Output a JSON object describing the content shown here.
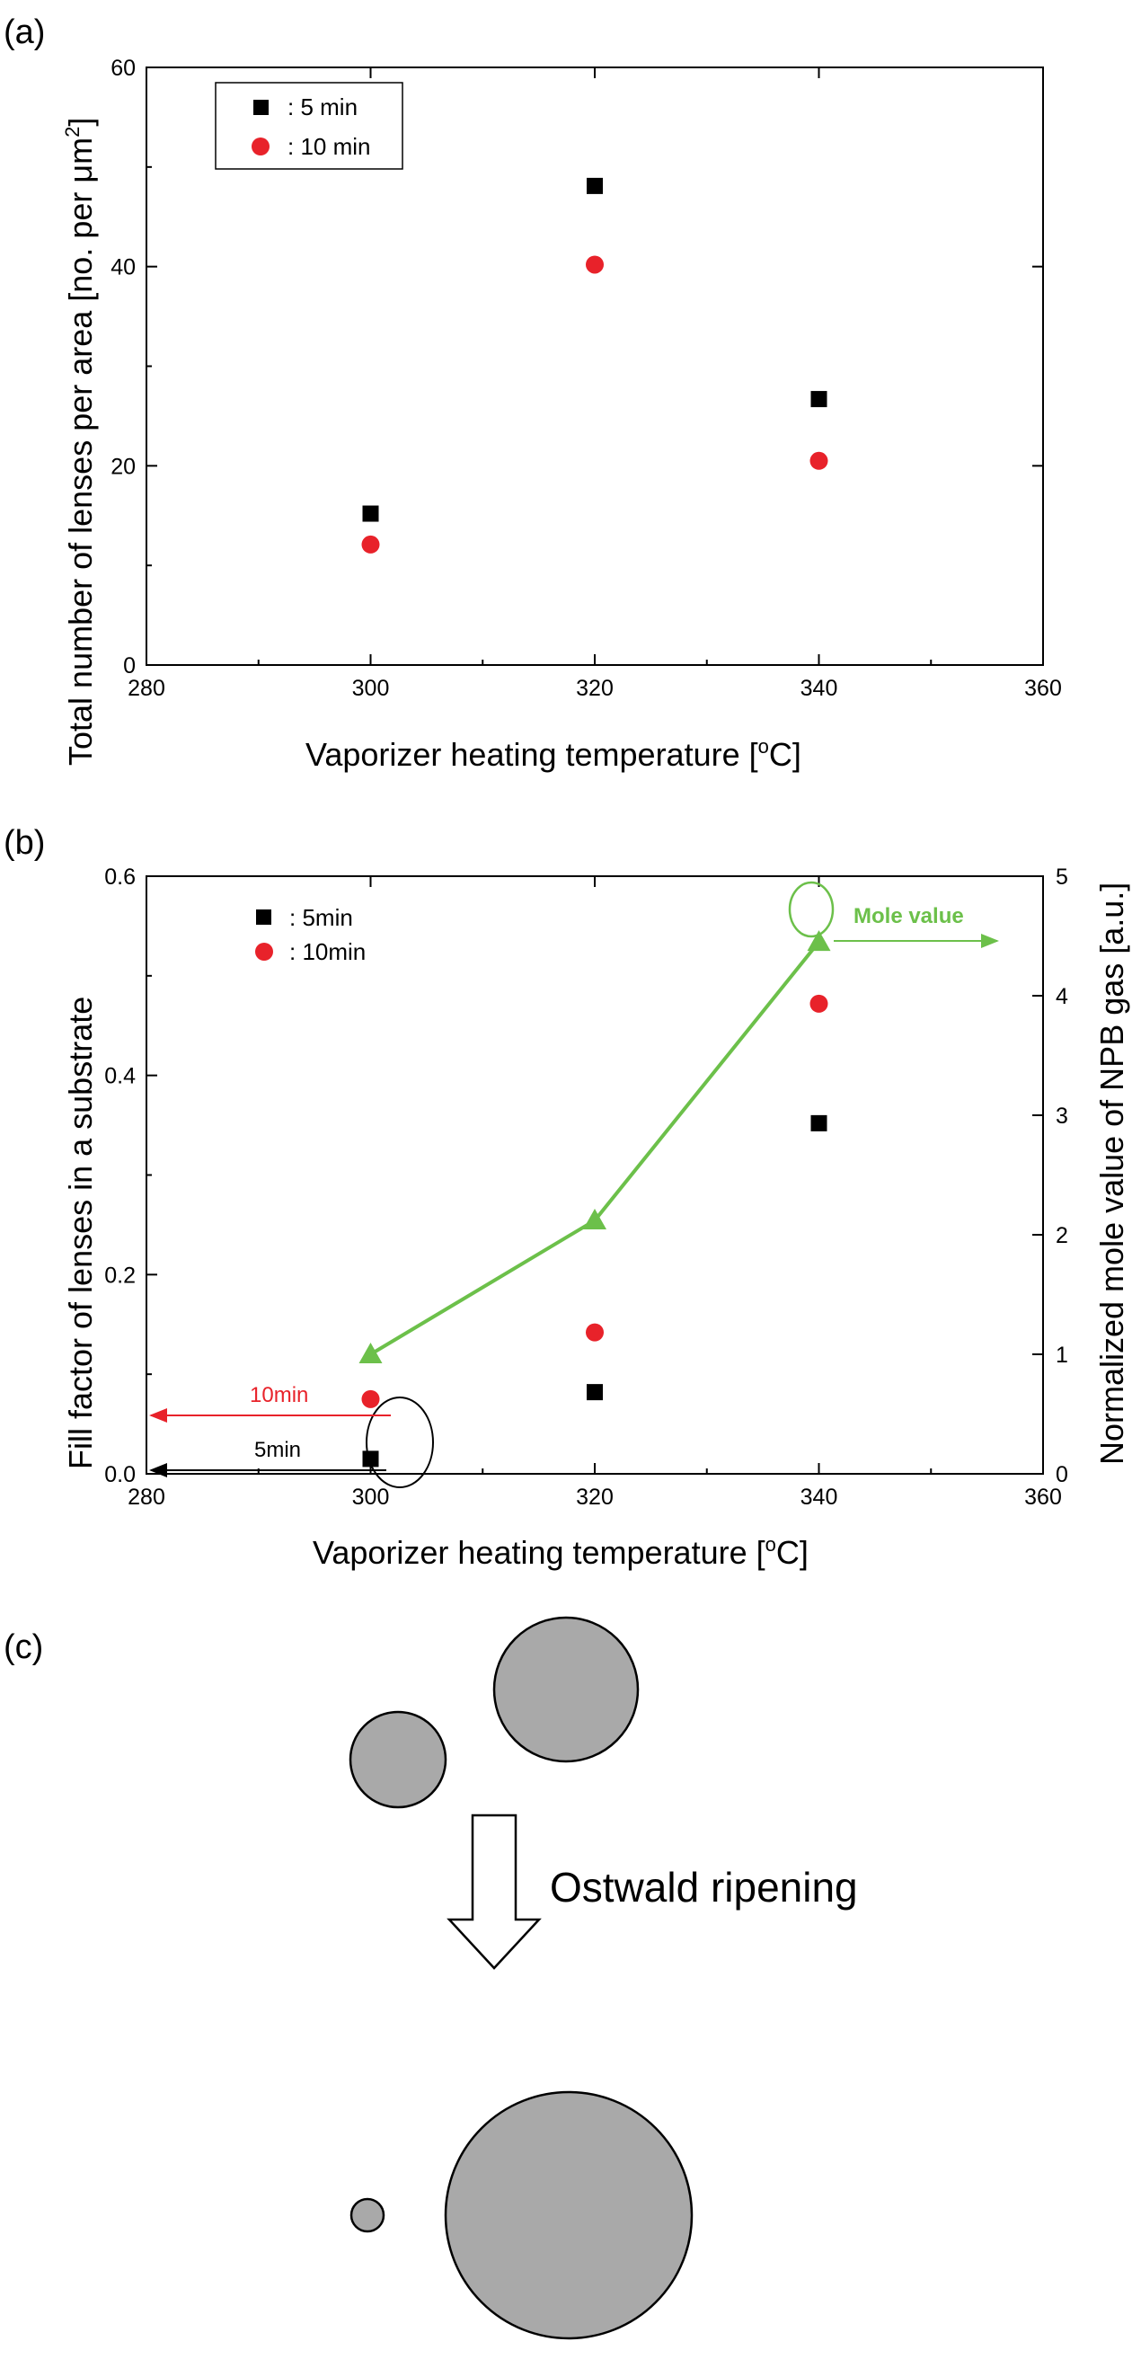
{
  "panels": {
    "a": "(a)",
    "b": "(b)",
    "c": "(c)"
  },
  "colors": {
    "black": "#000000",
    "red": "#e8222a",
    "green": "#6cc04a",
    "gray": "#a9a9a9"
  },
  "chart_data": [
    {
      "type": "scatter",
      "panel": "a",
      "xlabel": "Vaporizer heating temperature [",
      "xlabel_sup": "o",
      "xlabel_end": "C]",
      "ylabel": "Total number of lenses per area [no. per μm",
      "ylabel_sup": "2",
      "ylabel_end": "]",
      "xlim": [
        280,
        360
      ],
      "ylim": [
        0,
        60
      ],
      "xticks": [
        280,
        300,
        320,
        340,
        360
      ],
      "yticks": [
        0,
        20,
        40,
        60
      ],
      "legend_position": "top-left",
      "series": [
        {
          "name": ": 5 min",
          "marker": "square",
          "color": "#000000",
          "x": [
            300,
            320,
            340
          ],
          "y": [
            15.2,
            48.1,
            26.7
          ]
        },
        {
          "name": ": 10 min",
          "marker": "circle",
          "color": "#e8222a",
          "x": [
            300,
            320,
            340
          ],
          "y": [
            12.1,
            40.2,
            20.5
          ]
        }
      ]
    },
    {
      "type": "scatter",
      "panel": "b",
      "xlabel": "Vaporizer heating temperature [",
      "xlabel_sup": "o",
      "xlabel_end": "C]",
      "ylabel": "Fill factor of lenses in a substrate",
      "y2label": "Normalized mole value of NPB gas [a.u.]",
      "xlim": [
        280,
        360
      ],
      "ylim": [
        0.0,
        0.6
      ],
      "y2lim": [
        0,
        5
      ],
      "xticks": [
        280,
        300,
        320,
        340,
        360
      ],
      "yticks": [
        0.0,
        0.2,
        0.4,
        0.6
      ],
      "y2ticks": [
        0,
        1,
        2,
        3,
        4,
        5
      ],
      "legend_position": "top-left",
      "series": [
        {
          "name": ": 5min",
          "marker": "square",
          "color": "#000000",
          "axis": "left",
          "x": [
            300,
            320,
            340
          ],
          "y": [
            0.015,
            0.082,
            0.352
          ]
        },
        {
          "name": ": 10min",
          "marker": "circle",
          "color": "#e8222a",
          "axis": "left",
          "x": [
            300,
            320,
            340
          ],
          "y": [
            0.075,
            0.142,
            0.472
          ]
        },
        {
          "name": "Mole value",
          "marker": "triangle",
          "color": "#6cc04a",
          "axis": "right",
          "line": true,
          "x": [
            300,
            320,
            340
          ],
          "y": [
            1.0,
            2.12,
            4.45
          ]
        }
      ],
      "annotations": {
        "arrow_10min": "10min",
        "arrow_5min": "5min",
        "arrow_mole": "Mole value"
      }
    }
  ],
  "diagram": {
    "label": "Ostwald ripening"
  }
}
